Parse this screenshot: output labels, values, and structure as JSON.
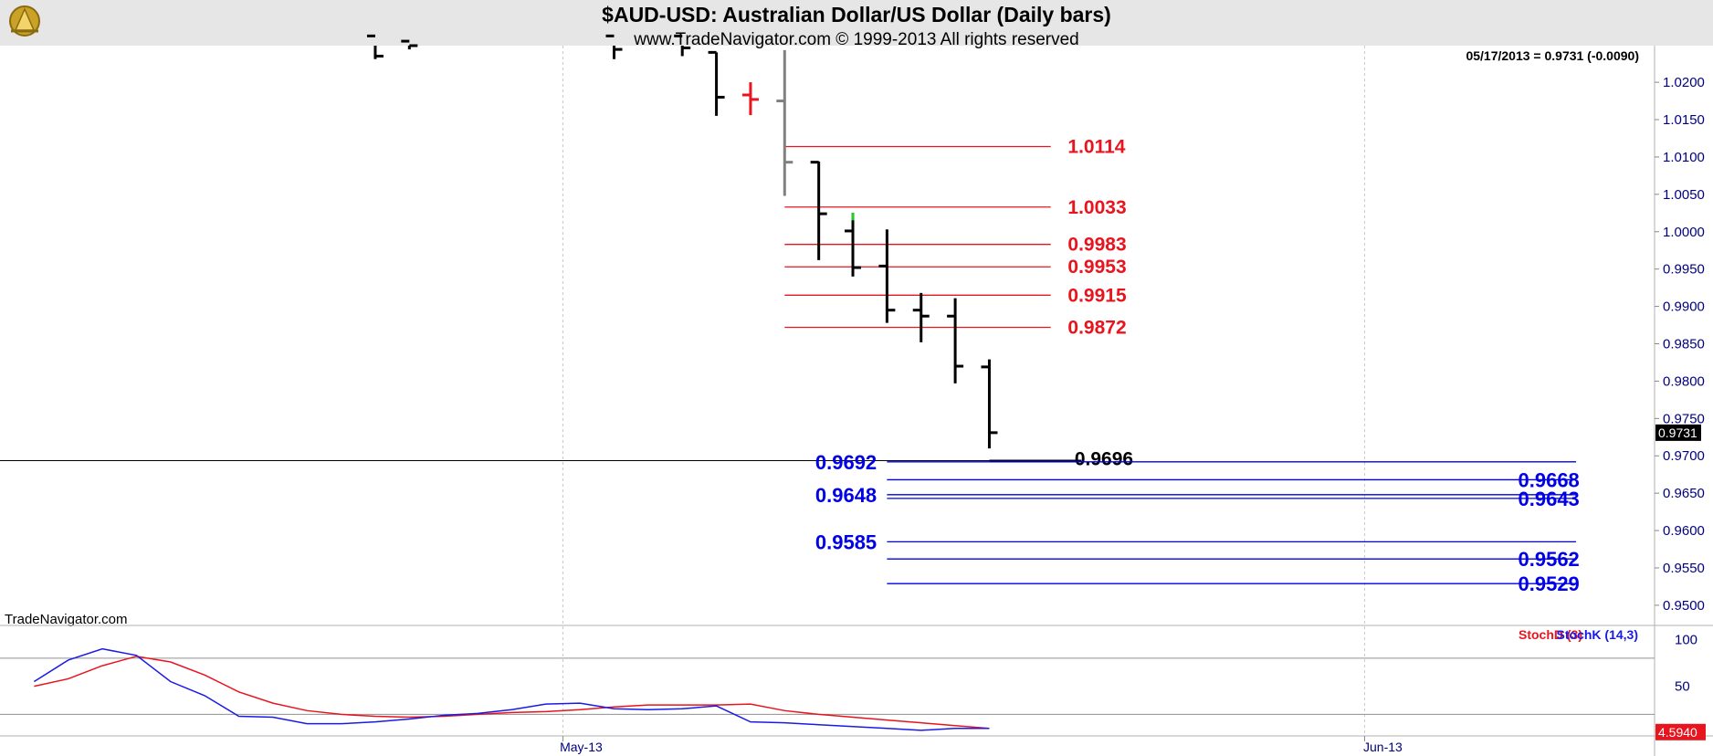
{
  "header": {
    "title": "$AUD-USD:  Australian Dollar/US Dollar  (Daily bars)",
    "subtitle": "www.TradeNavigator.com © 1999-2013 All rights reserved"
  },
  "quote_label": "05/17/2013 = 0.9731 (-0.0090)",
  "watermark": "TradeNavigator.com",
  "colors": {
    "background": "#ffffff",
    "header_bg": "#e6e6e6",
    "axis_text": "#000080",
    "resistance": "#e8141e",
    "support": "#0000e6",
    "bars": "#000000",
    "stoch_d": "#e8141e",
    "stoch_k": "#1a1ae6"
  },
  "chart_data": [
    {
      "type": "ohlc",
      "series_name": "$AUD-USD",
      "y_axis": {
        "ticks": [
          "1.0200",
          "1.0150",
          "1.0100",
          "1.0050",
          "1.0000",
          "0.9950",
          "0.9900",
          "0.9850",
          "0.9800",
          "0.9750",
          "0.9700",
          "0.9650",
          "0.9600",
          "0.9550",
          "0.9500"
        ],
        "ylim": [
          0.9473,
          1.0249
        ]
      },
      "x_axis": {
        "ticks": [
          {
            "label": "May-13",
            "index": 16.5
          },
          {
            "label": "Jun-13",
            "index": 40
          }
        ],
        "xlim": [
          0,
          48.5
        ]
      },
      "last_value_label": "0.9731",
      "last_value": 0.9731,
      "bars": [
        {
          "i": 11,
          "o": 1.0262,
          "h": 1.0262,
          "l": 1.0231,
          "c": 1.0235,
          "color": "black"
        },
        {
          "i": 12,
          "o": 1.0255,
          "h": 1.0262,
          "l": 1.0244,
          "c": 1.0249,
          "color": "black"
        },
        {
          "i": 18,
          "o": 1.0262,
          "h": 1.0262,
          "l": 1.0231,
          "c": 1.0244,
          "color": "black"
        },
        {
          "i": 20,
          "o": 1.0262,
          "h": 1.0262,
          "l": 1.0235,
          "c": 1.0246,
          "color": "black"
        },
        {
          "i": 21,
          "o": 1.024,
          "h": 1.024,
          "l": 1.0155,
          "c": 1.018,
          "color": "black"
        },
        {
          "i": 22,
          "o": 1.0183,
          "h": 1.02,
          "l": 1.0156,
          "c": 1.0177,
          "color": "red"
        },
        {
          "i": 23,
          "o": 1.0175,
          "h": 1.0243,
          "l": 1.0048,
          "c": 1.0093,
          "color": "gray"
        },
        {
          "i": 24,
          "o": 1.0093,
          "h": 1.0094,
          "l": 0.9962,
          "c": 1.0024,
          "color": "black"
        },
        {
          "i": 25,
          "o": 1.0001,
          "h": 1.0025,
          "l": 0.994,
          "c": 0.9952,
          "color": "black",
          "high_tick_color": "green"
        },
        {
          "i": 26,
          "o": 0.9954,
          "h": 1.0003,
          "l": 0.9878,
          "c": 0.9895,
          "color": "black"
        },
        {
          "i": 27,
          "o": 0.9895,
          "h": 0.9918,
          "l": 0.9852,
          "c": 0.9887,
          "color": "black"
        },
        {
          "i": 28,
          "o": 0.9887,
          "h": 0.9911,
          "l": 0.9797,
          "c": 0.982,
          "color": "black"
        },
        {
          "i": 29,
          "o": 0.9819,
          "h": 0.9829,
          "l": 0.971,
          "c": 0.9731,
          "color": "black"
        }
      ],
      "resistance_levels": [
        {
          "value": 1.0114,
          "label": "1.0114"
        },
        {
          "value": 1.0033,
          "label": "1.0033"
        },
        {
          "value": 0.9983,
          "label": "0.9983"
        },
        {
          "value": 0.9953,
          "label": "0.9953"
        },
        {
          "value": 0.9915,
          "label": "0.9915"
        },
        {
          "value": 0.9872,
          "label": "0.9872"
        }
      ],
      "horizontal_line": {
        "value": 0.9696,
        "label": "0.9696"
      },
      "support_levels_left": [
        {
          "value": 0.9692,
          "label": "0.9692"
        },
        {
          "value": 0.9648,
          "label": "0.9648"
        },
        {
          "value": 0.9585,
          "label": "0.9585"
        }
      ],
      "support_levels_right": [
        {
          "value": 0.9668,
          "label": "0.9668"
        },
        {
          "value": 0.9643,
          "label": "0.9643"
        },
        {
          "value": 0.9562,
          "label": "0.9562"
        },
        {
          "value": 0.9529,
          "label": "0.9529"
        }
      ]
    },
    {
      "type": "line",
      "title": "",
      "legend": [
        "StochD (3)",
        "StochK (14,3)"
      ],
      "y_axis": {
        "ticks": [
          "100",
          "50"
        ],
        "ylim": [
          -3,
          115
        ]
      },
      "guide_levels": [
        80,
        20
      ],
      "last_value_label": "4.5940",
      "x": [
        1,
        2,
        3,
        4,
        5,
        6,
        7,
        8,
        9,
        10,
        11,
        12,
        13,
        14,
        15,
        16,
        17,
        18,
        19,
        20,
        21,
        22,
        23,
        24,
        25,
        26,
        27,
        28,
        29
      ],
      "series": [
        {
          "name": "StochD (3)",
          "color": "#e8141e",
          "values": [
            50,
            58,
            72,
            82,
            76,
            62,
            44,
            32,
            24,
            20,
            18,
            17,
            18,
            20,
            22,
            23,
            25,
            28,
            30,
            30,
            30,
            31,
            24,
            20,
            17,
            14,
            11,
            8,
            5
          ]
        },
        {
          "name": "StochK (14,3)",
          "color": "#1a1ae6",
          "values": [
            55,
            78,
            90,
            83,
            55,
            40,
            18,
            17,
            10,
            10,
            12,
            15,
            19,
            21,
            25,
            31,
            32,
            26,
            25,
            26,
            29,
            12,
            11,
            9,
            7,
            5,
            3,
            5,
            5
          ]
        }
      ]
    }
  ]
}
